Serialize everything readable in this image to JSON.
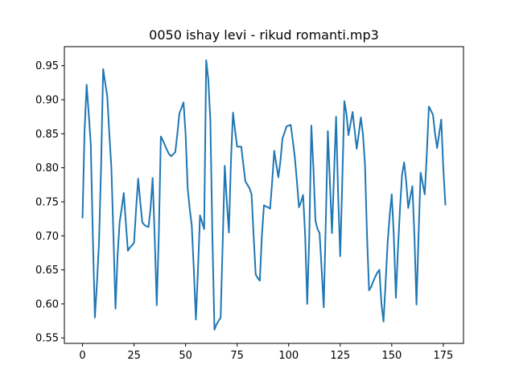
{
  "chart_data": {
    "type": "line",
    "title": "0050 ishay levi - rikud romanti.mp3",
    "xlabel": "",
    "ylabel": "",
    "xlim": [
      -8.8,
      184.8
    ],
    "ylim": [
      0.542,
      0.978
    ],
    "x_ticks": [
      0,
      25,
      50,
      75,
      100,
      125,
      150,
      175
    ],
    "x_tick_labels": [
      "0",
      "25",
      "50",
      "75",
      "100",
      "125",
      "150",
      "175"
    ],
    "y_ticks": [
      0.55,
      0.6,
      0.65,
      0.7,
      0.75,
      0.8,
      0.85,
      0.9,
      0.95
    ],
    "y_tick_labels": [
      "0.55",
      "0.60",
      "0.65",
      "0.70",
      "0.75",
      "0.80",
      "0.85",
      "0.90",
      "0.95"
    ],
    "grid": false,
    "legend": "none",
    "line_color": "#1f77b4",
    "series": [
      {
        "x": [
          0,
          1,
          2,
          3,
          4,
          5,
          6,
          7,
          8,
          9,
          10,
          11,
          12,
          13,
          14,
          15,
          16,
          17,
          18,
          19,
          20,
          21,
          22,
          23,
          24,
          25,
          26,
          27,
          28,
          29,
          30,
          31,
          32,
          33,
          34,
          35,
          36,
          37,
          38,
          39,
          40,
          41,
          42,
          43,
          44,
          45,
          46,
          47,
          48,
          49,
          50,
          51,
          52,
          53,
          54,
          55,
          56,
          57,
          58,
          59,
          60,
          61,
          62,
          63,
          64,
          65,
          66,
          67,
          68,
          69,
          70,
          71,
          72,
          73,
          74,
          75,
          76,
          77,
          78,
          79,
          80,
          81,
          82,
          83,
          84,
          85,
          86,
          87,
          88,
          89,
          90,
          91,
          92,
          93,
          94,
          95,
          96,
          97,
          98,
          99,
          100,
          101,
          102,
          103,
          104,
          105,
          106,
          107,
          108,
          109,
          110,
          111,
          112,
          113,
          114,
          115,
          116,
          117,
          118,
          119,
          120,
          121,
          122,
          123,
          124,
          125,
          126,
          127,
          128,
          129,
          130,
          131,
          132,
          133,
          134,
          135,
          136,
          137,
          138,
          139,
          140,
          141,
          142,
          143,
          144,
          145,
          146,
          147,
          148,
          149,
          150,
          151,
          152,
          153,
          154,
          155,
          156,
          157,
          158,
          159,
          160,
          161,
          162,
          163,
          164,
          165,
          166,
          167,
          168,
          169,
          170,
          171,
          172,
          173,
          174,
          175,
          176
        ],
        "values": [
          0.727,
          0.855,
          0.922,
          0.88,
          0.835,
          0.7,
          0.58,
          0.63,
          0.69,
          0.8,
          0.945,
          0.925,
          0.905,
          0.85,
          0.8,
          0.7,
          0.593,
          0.67,
          0.72,
          0.74,
          0.763,
          0.72,
          0.678,
          0.683,
          0.686,
          0.69,
          0.74,
          0.784,
          0.75,
          0.72,
          0.716,
          0.714,
          0.713,
          0.74,
          0.785,
          0.7,
          0.598,
          0.7,
          0.846,
          0.84,
          0.833,
          0.826,
          0.82,
          0.817,
          0.82,
          0.823,
          0.85,
          0.88,
          0.888,
          0.896,
          0.85,
          0.77,
          0.74,
          0.715,
          0.65,
          0.577,
          0.65,
          0.73,
          0.72,
          0.71,
          0.958,
          0.93,
          0.87,
          0.7,
          0.562,
          0.57,
          0.575,
          0.58,
          0.69,
          0.803,
          0.75,
          0.705,
          0.81,
          0.881,
          0.855,
          0.831,
          0.831,
          0.831,
          0.805,
          0.78,
          0.775,
          0.77,
          0.761,
          0.7,
          0.643,
          0.638,
          0.634,
          0.7,
          0.745,
          0.743,
          0.742,
          0.74,
          0.78,
          0.825,
          0.805,
          0.786,
          0.81,
          0.843,
          0.852,
          0.861,
          0.862,
          0.863,
          0.84,
          0.815,
          0.78,
          0.742,
          0.75,
          0.76,
          0.7,
          0.6,
          0.7,
          0.862,
          0.8,
          0.722,
          0.71,
          0.704,
          0.65,
          0.595,
          0.72,
          0.854,
          0.78,
          0.704,
          0.79,
          0.875,
          0.76,
          0.67,
          0.78,
          0.898,
          0.88,
          0.848,
          0.865,
          0.882,
          0.855,
          0.828,
          0.85,
          0.874,
          0.85,
          0.806,
          0.7,
          0.62,
          0.625,
          0.633,
          0.64,
          0.646,
          0.65,
          0.6,
          0.574,
          0.63,
          0.69,
          0.73,
          0.761,
          0.7,
          0.609,
          0.68,
          0.74,
          0.79,
          0.808,
          0.78,
          0.741,
          0.757,
          0.773,
          0.7,
          0.599,
          0.7,
          0.793,
          0.777,
          0.761,
          0.82,
          0.89,
          0.884,
          0.878,
          0.85,
          0.829,
          0.85,
          0.871,
          0.8,
          0.746
        ]
      }
    ]
  }
}
